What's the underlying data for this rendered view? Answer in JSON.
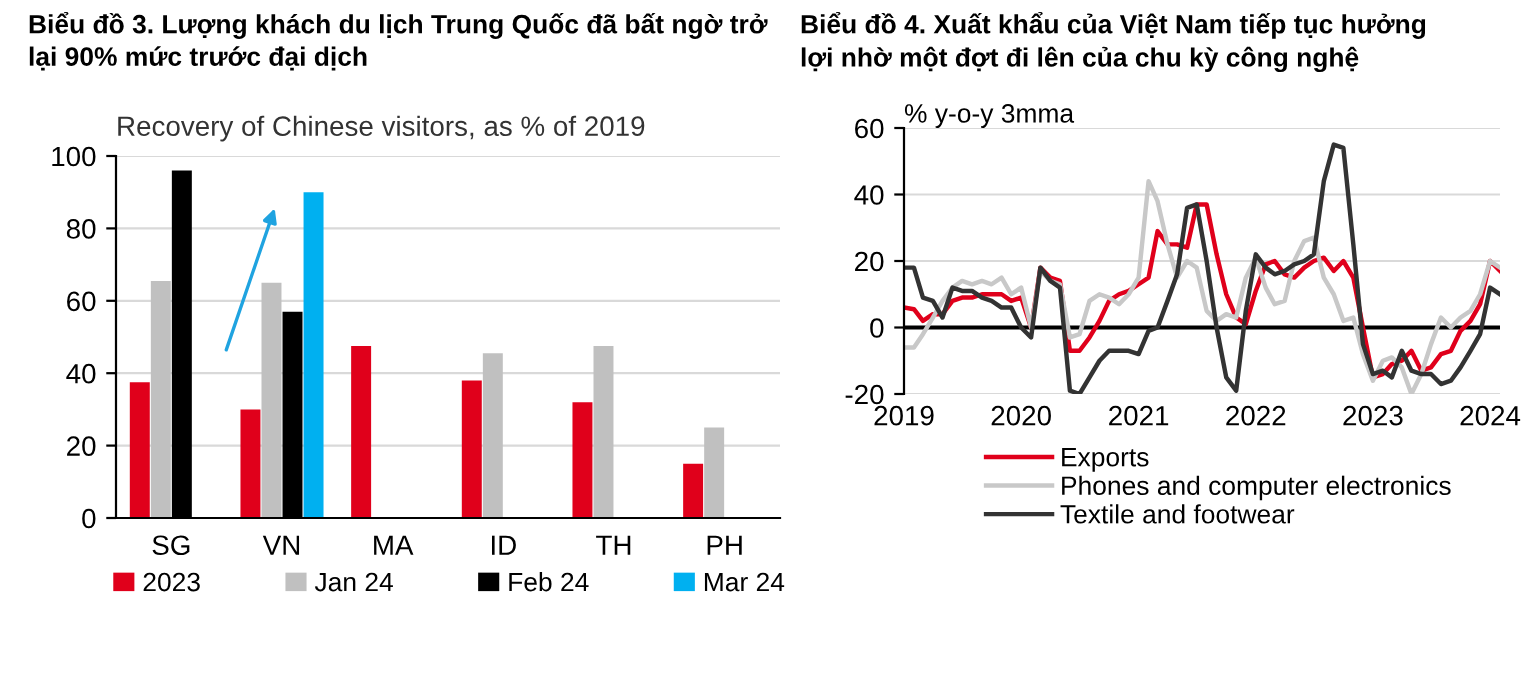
{
  "chart_data": [
    {
      "type": "bar",
      "title": "Biểu đồ 3. Lượng khách du lịch Trung Quốc đã bất ngờ trở\nlại 90% mức trước đại dịch",
      "subtitle": "Recovery of Chinese visitors, as % of 2019",
      "categories": [
        "SG",
        "VN",
        "MA",
        "ID",
        "TH",
        "PH"
      ],
      "series": [
        {
          "name": "2023",
          "color": "#e0001b",
          "values": [
            37.5,
            30,
            47.5,
            38,
            32,
            15
          ]
        },
        {
          "name": "Jan 24",
          "color": "#c0c0c0",
          "values": [
            65.5,
            65,
            null,
            45.5,
            47.5,
            25
          ]
        },
        {
          "name": "Feb 24",
          "color": "#000000",
          "values": [
            96,
            57,
            null,
            null,
            null,
            null
          ]
        },
        {
          "name": "Mar 24",
          "color": "#00b0f0",
          "values": [
            null,
            90,
            null,
            null,
            null,
            null
          ]
        }
      ],
      "ylim": [
        0,
        100
      ],
      "yticks": [
        0,
        20,
        40,
        60,
        80,
        100
      ],
      "grid": "y",
      "legend": "bottom"
    },
    {
      "type": "line",
      "title": "Biểu đồ 4. Xuất khẩu của Việt Nam tiếp tục hưởng\nlợi nhờ một đợt đi lên của chu kỳ công nghệ",
      "ylabel": "% y-o-y 3mma",
      "x": [
        "2019-01",
        "2019-02",
        "2019-03",
        "2019-04",
        "2019-05",
        "2019-06",
        "2019-07",
        "2019-08",
        "2019-09",
        "2019-10",
        "2019-11",
        "2019-12",
        "2020-01",
        "2020-02",
        "2020-03",
        "2020-04",
        "2020-05",
        "2020-06",
        "2020-07",
        "2020-08",
        "2020-09",
        "2020-10",
        "2020-11",
        "2020-12",
        "2021-01",
        "2021-02",
        "2021-03",
        "2021-04",
        "2021-05",
        "2021-06",
        "2021-07",
        "2021-08",
        "2021-09",
        "2021-10",
        "2021-11",
        "2021-12",
        "2022-01",
        "2022-02",
        "2022-03",
        "2022-04",
        "2022-05",
        "2022-06",
        "2022-07",
        "2022-08",
        "2022-09",
        "2022-10",
        "2022-11",
        "2022-12",
        "2023-01",
        "2023-02",
        "2023-03",
        "2023-04",
        "2023-05",
        "2023-06",
        "2023-07",
        "2023-08",
        "2023-09",
        "2023-10",
        "2023-11",
        "2023-12",
        "2024-01",
        "2024-02"
      ],
      "series": [
        {
          "name": "Exports",
          "color": "#e0001b",
          "values": [
            6,
            5.5,
            2,
            4,
            4,
            8,
            9,
            9,
            10,
            10,
            10,
            8,
            9,
            0,
            18,
            15,
            14,
            -7,
            -7,
            -3,
            2,
            8,
            10,
            11,
            13,
            15,
            29,
            25,
            25,
            24,
            37,
            37,
            22,
            10,
            3,
            1,
            11,
            19,
            20,
            16,
            15,
            18,
            20,
            21,
            17,
            20,
            15,
            0,
            -15,
            -14,
            -11,
            -10,
            -7,
            -13,
            -12,
            -8,
            -7,
            -1,
            2,
            7,
            20,
            17
          ]
        },
        {
          "name": "Phones and computer electronics",
          "color": "#c8c8c8",
          "values": [
            -6,
            -6,
            -2,
            3,
            8,
            12,
            14,
            13,
            14,
            13,
            15,
            10,
            12,
            0,
            17,
            14,
            13,
            -3,
            -2,
            8,
            10,
            9,
            7,
            10,
            15,
            44,
            38,
            25,
            15,
            20,
            18,
            5,
            2,
            4,
            3,
            15,
            21,
            12,
            7,
            8,
            20,
            26,
            27,
            15,
            10,
            2,
            3,
            -8,
            -16,
            -10,
            -9,
            -12,
            -20,
            -14,
            -5,
            3,
            0,
            3,
            5,
            10,
            20,
            18
          ]
        },
        {
          "name": "Textile and footwear",
          "color": "#333333",
          "values": [
            18,
            18,
            9,
            8,
            3,
            12,
            11,
            11,
            9,
            8,
            6,
            6,
            0,
            -3,
            18,
            14,
            12,
            -19,
            -20,
            -15,
            -10,
            -7,
            -7,
            -7,
            -8,
            -1,
            0,
            8,
            16,
            36,
            37,
            20,
            0,
            -15,
            -19,
            5,
            22,
            18,
            16,
            17,
            19,
            20,
            22,
            44,
            55,
            54,
            25,
            -5,
            -14,
            -13,
            -15,
            -7,
            -13,
            -14,
            -14,
            -17,
            -16,
            -12,
            -7,
            -2,
            12,
            10
          ]
        }
      ],
      "xlim": [
        "2019-01",
        "2024-02"
      ],
      "xticks": [
        "2019",
        "2020",
        "2021",
        "2022",
        "2023",
        "2024"
      ],
      "ylim": [
        -20,
        60
      ],
      "yticks": [
        -20,
        0,
        20,
        40,
        60
      ],
      "grid": "y",
      "legend": "bottom",
      "ref_lines": [
        {
          "axis": "y",
          "value": 0,
          "color": "#000000"
        }
      ]
    }
  ]
}
